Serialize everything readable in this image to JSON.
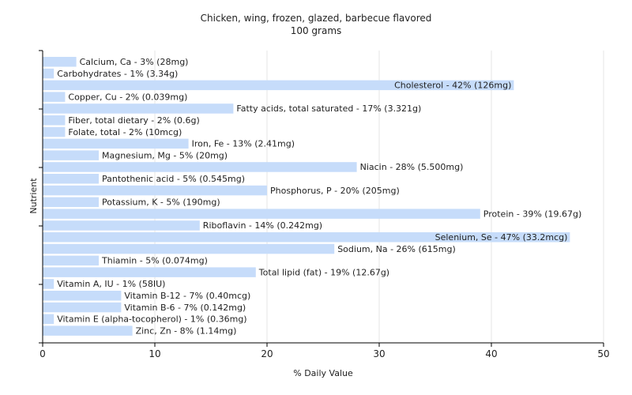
{
  "chart_data": {
    "type": "bar",
    "orientation": "horizontal",
    "title": "Chicken, wing, frozen, glazed, barbecue flavored",
    "subtitle": "100 grams",
    "xlabel": "% Daily Value",
    "ylabel": "Nutrient",
    "xlim": [
      0,
      50
    ],
    "xticks": [
      "0",
      "10",
      "20",
      "30",
      "40",
      "50"
    ],
    "grid": "vertical",
    "bar_color": "#c6dcfa",
    "categories": [
      "Calcium, Ca",
      "Carbohydrates",
      "Cholesterol",
      "Copper, Cu",
      "Fatty acids, total saturated",
      "Fiber, total dietary",
      "Folate, total",
      "Iron, Fe",
      "Magnesium, Mg",
      "Niacin",
      "Pantothenic acid",
      "Phosphorus, P",
      "Potassium, K",
      "Protein",
      "Riboflavin",
      "Selenium, Se",
      "Sodium, Na",
      "Thiamin",
      "Total lipid (fat)",
      "Vitamin A, IU",
      "Vitamin B-12",
      "Vitamin B-6",
      "Vitamin E (alpha-tocopherol)",
      "Zinc, Zn"
    ],
    "values": [
      3,
      1,
      42,
      2,
      17,
      2,
      2,
      13,
      5,
      28,
      5,
      20,
      5,
      39,
      14,
      47,
      26,
      5,
      19,
      1,
      7,
      7,
      1,
      8
    ],
    "labels": [
      "Calcium, Ca - 3% (28mg)",
      "Carbohydrates - 1% (3.34g)",
      "Cholesterol - 42% (126mg)",
      "Copper, Cu - 2% (0.039mg)",
      "Fatty acids, total saturated - 17% (3.321g)",
      "Fiber, total dietary - 2% (0.6g)",
      "Folate, total - 2% (10mcg)",
      "Iron, Fe - 13% (2.41mg)",
      "Magnesium, Mg - 5% (20mg)",
      "Niacin - 28% (5.500mg)",
      "Pantothenic acid - 5% (0.545mg)",
      "Phosphorus, P - 20% (205mg)",
      "Potassium, K - 5% (190mg)",
      "Protein - 39% (19.67g)",
      "Riboflavin - 14% (0.242mg)",
      "Selenium, Se - 47% (33.2mcg)",
      "Sodium, Na - 26% (615mg)",
      "Thiamin - 5% (0.074mg)",
      "Total lipid (fat) - 19% (12.67g)",
      "Vitamin A, IU - 1% (58IU)",
      "Vitamin B-12 - 7% (0.40mcg)",
      "Vitamin B-6 - 7% (0.142mg)",
      "Vitamin E (alpha-tocopherol) - 1% (0.36mg)",
      "Zinc, Zn - 8% (1.14mg)"
    ]
  }
}
